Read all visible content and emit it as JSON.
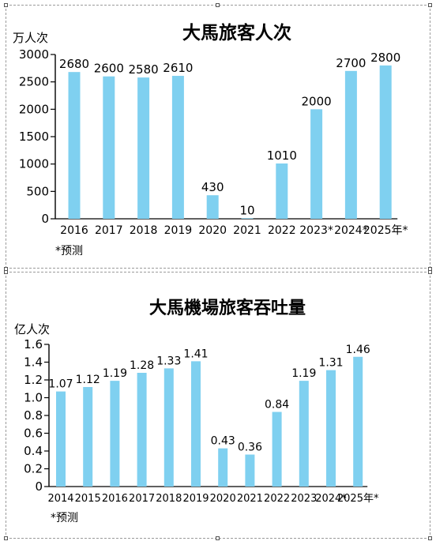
{
  "chart_data": [
    {
      "type": "bar",
      "title": "大馬旅客人次",
      "ylabel": "万人次",
      "footnote": "*预测",
      "categories": [
        "2016",
        "2017",
        "2018",
        "2019",
        "2020",
        "2021",
        "2022",
        "2023*",
        "2024*",
        "2025年*"
      ],
      "values": [
        2680,
        2600,
        2580,
        2610,
        430,
        10,
        1010,
        2000,
        2700,
        2800
      ],
      "value_labels": [
        "2680",
        "2600",
        "2580",
        "2610",
        "430",
        "10",
        "1010",
        "2000",
        "2700",
        "2800"
      ],
      "yticks": [
        "0",
        "500",
        "1000",
        "1500",
        "2000",
        "2500",
        "3000"
      ],
      "ylim": [
        0,
        3000
      ],
      "grid": false,
      "legend": "none",
      "bar_color": "#7fd0f0"
    },
    {
      "type": "bar",
      "title": "大馬機場旅客吞吐量",
      "ylabel": "亿人次",
      "footnote": "*预测",
      "categories": [
        "2014",
        "2015",
        "2016",
        "2017",
        "2018",
        "2019",
        "2020",
        "2021",
        "2022",
        "2023",
        "2024*",
        "2025年*"
      ],
      "values": [
        1.07,
        1.12,
        1.19,
        1.28,
        1.33,
        1.41,
        0.43,
        0.36,
        0.84,
        1.19,
        1.31,
        1.46
      ],
      "value_labels": [
        "1.07",
        "1.12",
        "1.19",
        "1.28",
        "1.33",
        "1.41",
        "0.43",
        "0.36",
        "0.84",
        "1.19",
        "1.31",
        "1.46"
      ],
      "yticks": [
        "0",
        "0.2",
        "0.4",
        "0.6",
        "0.8",
        "1.0",
        "1.2",
        "1.4",
        "1.6"
      ],
      "ylim": [
        0,
        1.6
      ],
      "grid": false,
      "legend": "none",
      "bar_color": "#7fd0f0"
    }
  ]
}
